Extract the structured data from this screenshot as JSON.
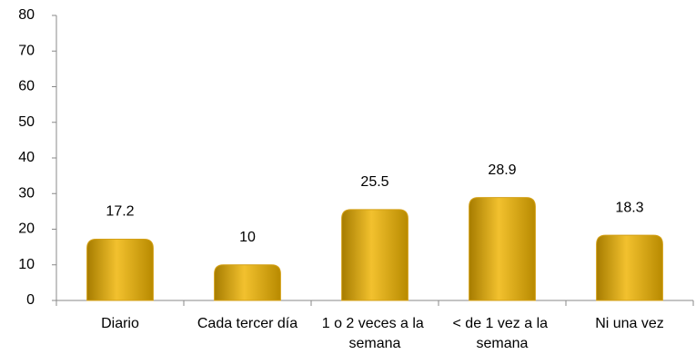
{
  "chart_data": {
    "type": "bar",
    "categories": [
      "Diario",
      "Cada tercer día",
      "1 o 2 veces a la semana",
      "< de 1 vez a la semana",
      "Ni una vez"
    ],
    "values": [
      17.2,
      10,
      25.5,
      28.9,
      18.3
    ],
    "color": "#d4a017",
    "ylim": [
      0,
      80
    ],
    "yticks": [
      0,
      10,
      20,
      30,
      40,
      50,
      60,
      70,
      80
    ],
    "grid": false
  }
}
